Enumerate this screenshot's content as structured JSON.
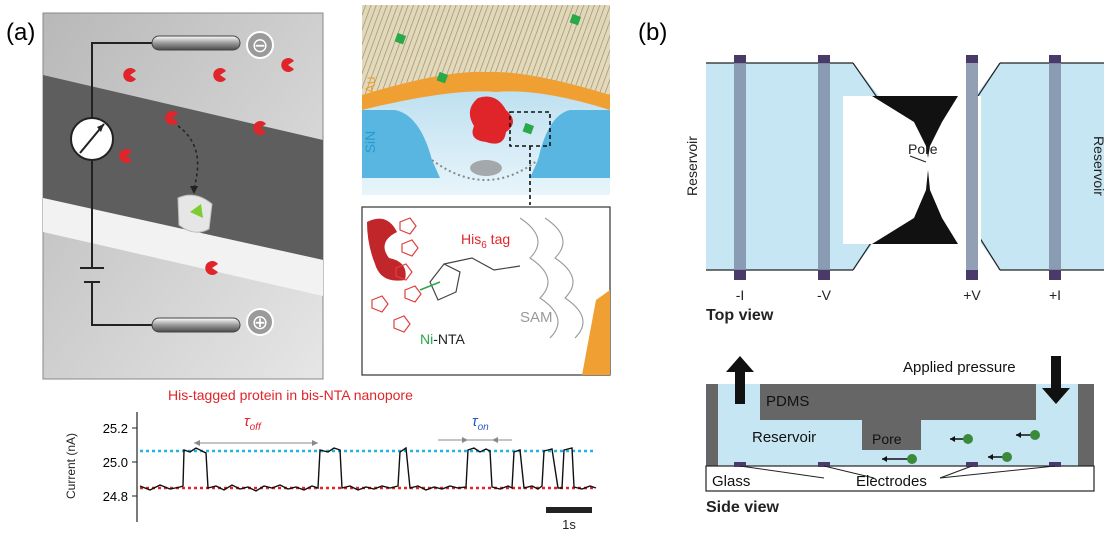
{
  "panel_a": {
    "label": "(a)",
    "electrode_top_sign": "⊖",
    "electrode_bottom_sign": "⊕",
    "layer_au": "Au",
    "layer_sin": "SiN",
    "inset_his_prefix": "His",
    "inset_his_sub": "6",
    "inset_his_suffix": " tag",
    "inset_ni": "Ni",
    "inset_nta": "-NTA",
    "inset_sam": "SAM",
    "trace_title": "His-tagged protein in bis-NTA nanopore",
    "trace_ylabel": "Current (nA)",
    "trace_ticks": [
      "25.2",
      "25.0",
      "24.8"
    ],
    "tau_off": "τ",
    "tau_off_sub": "off",
    "tau_on": "τ",
    "tau_on_sub": "on",
    "scale_label": "1s",
    "colors": {
      "protein": "#e0252a",
      "au": "#f0a033",
      "sin": "#58b6e0",
      "upper_level": "#22b5e0",
      "lower_level": "#e0252a"
    }
  },
  "panel_b": {
    "label": "(b)",
    "reservoir_left": "Reservoir",
    "reservoir_right": "Reservoir",
    "pore_label": "Pore",
    "electrode_labels": [
      "-I",
      "-V",
      "+V",
      "+I"
    ],
    "top_view": "Top view",
    "applied_pressure": "Applied pressure",
    "pdms": "PDMS",
    "side_reservoir": "Reservoir",
    "side_pore": "Pore",
    "glass": "Glass",
    "electrodes": "Electrodes",
    "side_view": "Side view",
    "colors": {
      "fluid": "#c5e6f2",
      "electrode": "#4a3a6a",
      "pdms": "#666666",
      "particle": "#3a8a3a"
    }
  }
}
